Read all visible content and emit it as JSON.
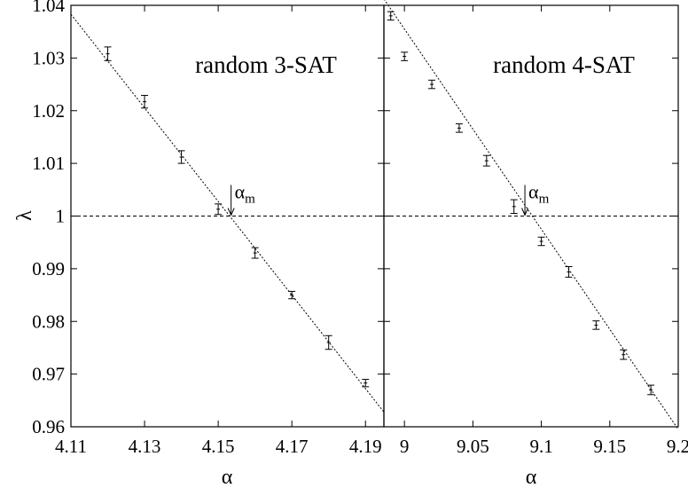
{
  "chart_data": [
    {
      "type": "scatter",
      "title": "random 3-SAT",
      "xlabel": "α",
      "ylabel": "λ",
      "xlim": [
        4.11,
        4.195
      ],
      "ylim": [
        0.96,
        1.04
      ],
      "xticks": [
        "4.11",
        "4.13",
        "4.15",
        "4.17",
        "4.19"
      ],
      "yticks": [
        "0.96",
        "0.97",
        "0.98",
        "0.99",
        "1",
        "1.01",
        "1.02",
        "1.03",
        "1.04"
      ],
      "series": [
        {
          "points": [
            {
              "x": 4.12,
              "y": 1.0308,
              "err": 0.0013
            },
            {
              "x": 4.13,
              "y": 1.0217,
              "err": 0.0012
            },
            {
              "x": 4.14,
              "y": 1.0112,
              "err": 0.0012
            },
            {
              "x": 4.15,
              "y": 1.0013,
              "err": 0.001
            },
            {
              "x": 4.16,
              "y": 0.993,
              "err": 0.001
            },
            {
              "x": 4.17,
              "y": 0.985,
              "err": 0.0007
            },
            {
              "x": 4.18,
              "y": 0.976,
              "err": 0.0013
            },
            {
              "x": 4.19,
              "y": 0.9683,
              "err": 0.0007
            }
          ]
        }
      ],
      "fit_line": {
        "x": [
          4.11,
          4.195
        ],
        "y": [
          1.0383,
          0.9628
        ]
      },
      "reference_line": {
        "y": 1
      },
      "annotation": {
        "text": "α",
        "subscript": "m",
        "x": 4.1535,
        "y": 1
      }
    },
    {
      "type": "scatter",
      "title": "random 4-SAT",
      "xlabel": "α",
      "ylabel": "",
      "xlim": [
        8.985,
        9.2
      ],
      "ylim": [
        0.96,
        1.04
      ],
      "xticks": [
        "9",
        "9.05",
        "9.1",
        "9.15",
        "9.2"
      ],
      "series": [
        {
          "points": [
            {
              "x": 8.99,
              "y": 1.038,
              "err": 0.0008
            },
            {
              "x": 9.0,
              "y": 1.0303,
              "err": 0.0008
            },
            {
              "x": 9.02,
              "y": 1.025,
              "err": 0.0008
            },
            {
              "x": 9.04,
              "y": 1.0167,
              "err": 0.0008
            },
            {
              "x": 9.06,
              "y": 1.0105,
              "err": 0.001
            },
            {
              "x": 9.08,
              "y": 1.0018,
              "err": 0.0013
            },
            {
              "x": 9.1,
              "y": 0.9952,
              "err": 0.0008
            },
            {
              "x": 9.12,
              "y": 0.9894,
              "err": 0.001
            },
            {
              "x": 9.14,
              "y": 0.9793,
              "err": 0.0008
            },
            {
              "x": 9.16,
              "y": 0.9737,
              "err": 0.0009
            },
            {
              "x": 9.18,
              "y": 0.967,
              "err": 0.0009
            }
          ]
        }
      ],
      "fit_line": {
        "x": [
          8.985,
          9.2
        ],
        "y": [
          1.0412,
          0.9595
        ]
      },
      "reference_line": {
        "y": 1
      },
      "annotation": {
        "text": "α",
        "subscript": "m",
        "x": 9.088,
        "y": 1
      }
    }
  ]
}
